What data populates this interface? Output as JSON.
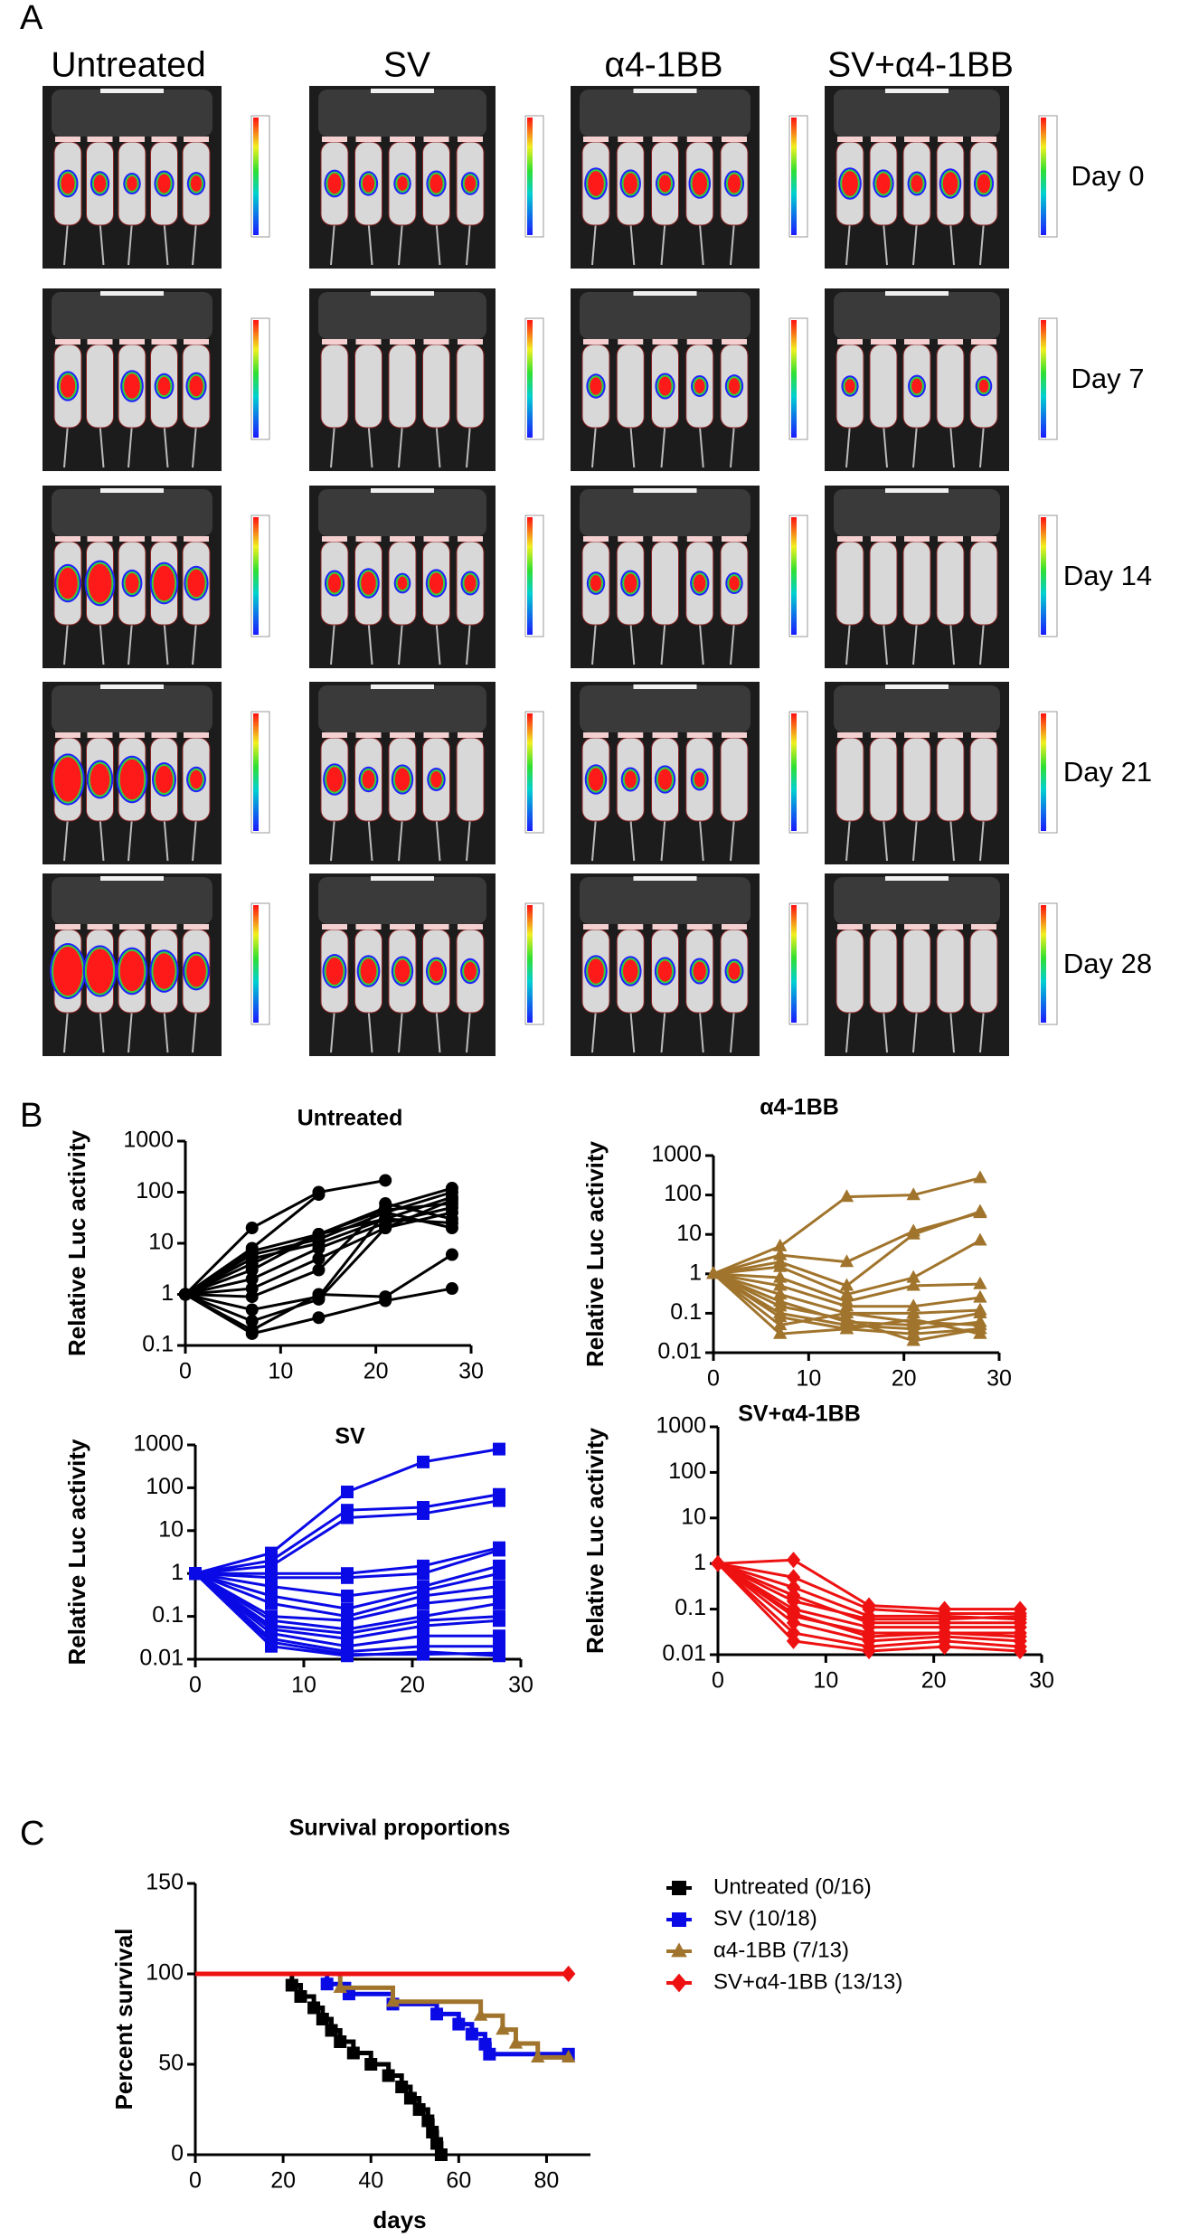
{
  "panels": [
    "A",
    "B",
    "C"
  ],
  "imaging": {
    "columns": [
      "Untreated",
      "SV",
      "α4-1BB",
      "SV+α4-1BB"
    ],
    "rows": [
      "Day 0",
      "Day 7",
      "Day 14",
      "Day 21",
      "Day 28"
    ]
  },
  "chart_data": [
    {
      "type": "line",
      "title": "Untreated",
      "ylabel": "Relative Luc activity",
      "log_y": true,
      "marker": "circle",
      "color": "#000000",
      "x": [
        0,
        7,
        14,
        21,
        28
      ],
      "xlim": [
        0,
        30
      ],
      "xticks": [
        0,
        10,
        20,
        30
      ],
      "ylim": [
        0.1,
        1000
      ],
      "yticks": [
        0.1,
        1,
        10,
        100,
        1000
      ],
      "series": [
        {
          "values": [
            1,
            20,
            100,
            170,
            null
          ]
        },
        {
          "values": [
            1,
            8,
            90,
            null,
            null
          ]
        },
        {
          "values": [
            1,
            7,
            15,
            50,
            120
          ]
        },
        {
          "values": [
            1,
            6,
            12,
            40,
            100
          ]
        },
        {
          "values": [
            1,
            5,
            10,
            30,
            80
          ]
        },
        {
          "values": [
            1,
            3,
            15,
            45,
            60
          ]
        },
        {
          "values": [
            1,
            2,
            8,
            25,
            50
          ]
        },
        {
          "values": [
            1,
            1.3,
            5,
            20,
            40
          ]
        },
        {
          "values": [
            1,
            0.9,
            3,
            60,
            30
          ]
        },
        {
          "values": [
            1,
            0.5,
            0.9,
            40,
            20
          ]
        },
        {
          "values": [
            1,
            0.2,
            1,
            0.9,
            6
          ]
        },
        {
          "values": [
            1,
            0.17,
            0.35,
            0.75,
            1.3
          ]
        },
        {
          "values": [
            1,
            4,
            15,
            30,
            25
          ]
        },
        {
          "values": [
            1,
            0.3,
            0.8,
            20,
            70
          ]
        }
      ]
    },
    {
      "type": "line",
      "title": "α4-1BB",
      "ylabel": "Relative Luc activity",
      "log_y": true,
      "marker": "triangle",
      "color": "#a0742c",
      "x": [
        0,
        7,
        14,
        21,
        28
      ],
      "xlim": [
        0,
        30
      ],
      "xticks": [
        0,
        10,
        20,
        30
      ],
      "ylim": [
        0.01,
        1000
      ],
      "yticks": [
        0.01,
        0.1,
        1,
        10,
        100,
        1000
      ],
      "series": [
        {
          "values": [
            1,
            5,
            90,
            100,
            270
          ]
        },
        {
          "values": [
            1,
            3,
            2,
            12,
            35
          ]
        },
        {
          "values": [
            1,
            2,
            0.5,
            10,
            38
          ]
        },
        {
          "values": [
            1,
            1.5,
            0.3,
            0.8,
            7
          ]
        },
        {
          "values": [
            1,
            0.8,
            0.2,
            0.5,
            0.55
          ]
        },
        {
          "values": [
            1,
            0.5,
            0.15,
            0.15,
            0.25
          ]
        },
        {
          "values": [
            1,
            0.3,
            0.1,
            0.1,
            0.12
          ]
        },
        {
          "values": [
            1,
            0.2,
            0.06,
            0.05,
            0.1
          ]
        },
        {
          "values": [
            1,
            0.1,
            0.05,
            0.04,
            0.06
          ]
        },
        {
          "values": [
            1,
            0.08,
            0.04,
            0.03,
            0.04
          ]
        },
        {
          "values": [
            1,
            0.05,
            0.1,
            0.06,
            0.05
          ]
        },
        {
          "values": [
            1,
            0.03,
            0.04,
            0.07,
            0.03
          ]
        },
        {
          "values": [
            1,
            0.15,
            0.07,
            0.02,
            0.04
          ]
        }
      ]
    },
    {
      "type": "line",
      "title": "SV",
      "ylabel": "Relative Luc activity",
      "log_y": true,
      "marker": "square",
      "color": "#0a0ae6",
      "x": [
        0,
        7,
        14,
        21,
        28
      ],
      "xlim": [
        0,
        30
      ],
      "xticks": [
        0,
        10,
        20,
        30
      ],
      "ylim": [
        0.01,
        1000
      ],
      "yticks": [
        0.01,
        0.1,
        1,
        10,
        100,
        1000
      ],
      "series": [
        {
          "values": [
            1,
            3,
            80,
            400,
            800
          ]
        },
        {
          "values": [
            1,
            2,
            30,
            35,
            70
          ]
        },
        {
          "values": [
            1,
            1.5,
            20,
            25,
            50
          ]
        },
        {
          "values": [
            1,
            1,
            1,
            1.5,
            4
          ]
        },
        {
          "values": [
            1,
            0.8,
            0.8,
            1,
            3.5
          ]
        },
        {
          "values": [
            1,
            0.5,
            0.3,
            0.5,
            1.5
          ]
        },
        {
          "values": [
            1,
            0.3,
            0.15,
            0.4,
            1
          ]
        },
        {
          "values": [
            1,
            0.2,
            0.1,
            0.3,
            0.5
          ]
        },
        {
          "values": [
            1,
            0.1,
            0.08,
            0.2,
            0.3
          ]
        },
        {
          "values": [
            1,
            0.08,
            0.05,
            0.1,
            0.2
          ]
        },
        {
          "values": [
            1,
            0.06,
            0.04,
            0.08,
            0.1
          ]
        },
        {
          "values": [
            1,
            0.05,
            0.03,
            0.06,
            0.08
          ]
        },
        {
          "values": [
            1,
            0.04,
            0.02,
            0.035,
            0.035
          ]
        },
        {
          "values": [
            1,
            0.03,
            0.015,
            0.02,
            0.02
          ]
        },
        {
          "values": [
            1,
            0.02,
            0.012,
            0.015,
            0.012
          ]
        },
        {
          "values": [
            1,
            0.025,
            0.013,
            0.013,
            0.014
          ]
        }
      ]
    },
    {
      "type": "line",
      "title": "SV+α4-1BB",
      "ylabel": "Relative Luc activity",
      "log_y": true,
      "marker": "diamond",
      "color": "#ee1111",
      "x": [
        0,
        7,
        14,
        21,
        28
      ],
      "xlim": [
        0,
        30
      ],
      "xticks": [
        0,
        10,
        20,
        30
      ],
      "ylim": [
        0.01,
        1000
      ],
      "yticks": [
        0.01,
        0.1,
        1,
        10,
        100,
        1000
      ],
      "series": [
        {
          "values": [
            1,
            1.2,
            0.12,
            0.1,
            0.1
          ]
        },
        {
          "values": [
            1,
            0.5,
            0.1,
            0.08,
            0.08
          ]
        },
        {
          "values": [
            1,
            0.3,
            0.07,
            0.07,
            0.06
          ]
        },
        {
          "values": [
            1,
            0.2,
            0.05,
            0.05,
            0.05
          ]
        },
        {
          "values": [
            1,
            0.1,
            0.04,
            0.04,
            0.04
          ]
        },
        {
          "values": [
            1,
            0.07,
            0.03,
            0.03,
            0.03
          ]
        },
        {
          "values": [
            1,
            0.05,
            0.02,
            0.025,
            0.02
          ]
        },
        {
          "values": [
            1,
            0.03,
            0.015,
            0.02,
            0.015
          ]
        },
        {
          "values": [
            1,
            0.02,
            0.012,
            0.015,
            0.012
          ]
        },
        {
          "values": [
            1,
            0.15,
            0.06,
            0.06,
            0.07
          ]
        },
        {
          "values": [
            1,
            0.08,
            0.025,
            0.03,
            0.025
          ]
        }
      ]
    },
    {
      "type": "step",
      "title": "Survival proportions",
      "xlabel": "days",
      "ylabel": "Percent survival",
      "legend": "right",
      "xlim": [
        0,
        90
      ],
      "xticks": [
        0,
        20,
        40,
        60,
        80
      ],
      "ylim": [
        0,
        150
      ],
      "yticks": [
        0,
        50,
        100,
        150
      ],
      "series": [
        {
          "name": "Untreated (0/16)",
          "color": "#000000",
          "marker": "square",
          "x": [
            0,
            22,
            24,
            27,
            29,
            31,
            33,
            36,
            40,
            44,
            47,
            49,
            51,
            53,
            54,
            55,
            56
          ],
          "values": [
            100,
            93.75,
            87.5,
            81.25,
            75,
            68.75,
            62.5,
            56.25,
            50,
            43.75,
            37.5,
            31.25,
            25,
            18.75,
            12.5,
            6.25,
            0
          ]
        },
        {
          "name": "SV (10/18)",
          "color": "#0a0ae6",
          "marker": "square",
          "x": [
            0,
            30,
            35,
            45,
            55,
            60,
            63,
            66,
            67,
            85
          ],
          "values": [
            100,
            94.4,
            88.9,
            83.3,
            77.8,
            72.2,
            66.7,
            61.1,
            55.6,
            55.6
          ]
        },
        {
          "name": "α4-1BB (7/13)",
          "color": "#a0742c",
          "marker": "triangle",
          "x": [
            0,
            33,
            45,
            65,
            70,
            73,
            78,
            85
          ],
          "values": [
            100,
            92.3,
            84.6,
            76.9,
            69.2,
            61.5,
            53.8,
            53.8
          ]
        },
        {
          "name": "SV+α4-1BB (13/13)",
          "color": "#ee1111",
          "marker": "diamond",
          "x": [
            0,
            85
          ],
          "values": [
            100,
            100
          ]
        }
      ]
    }
  ]
}
